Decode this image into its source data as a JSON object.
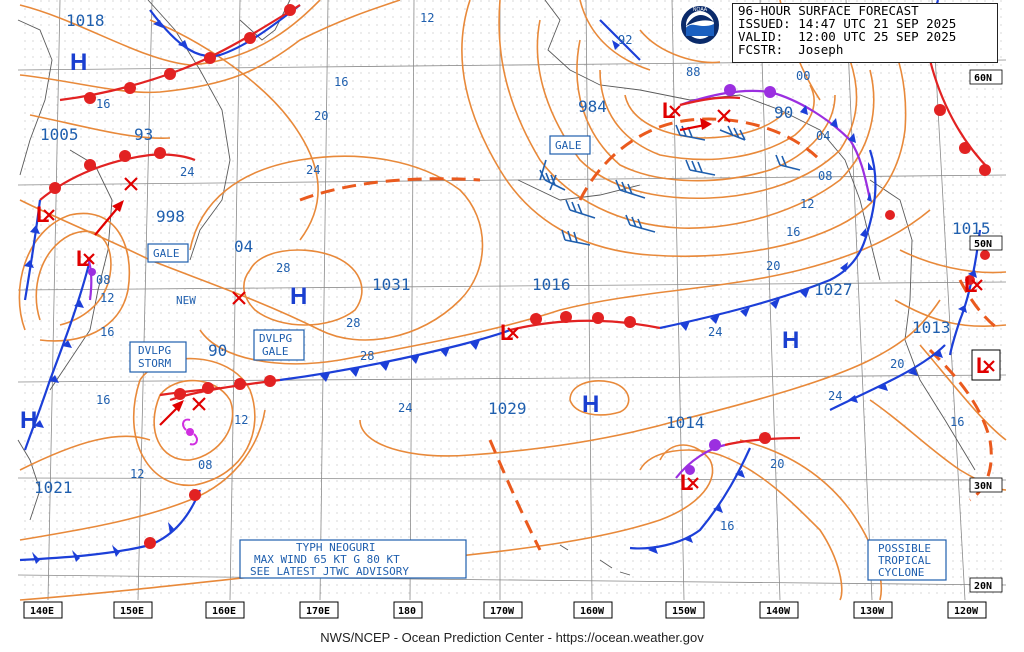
{
  "header": {
    "product": "96-HOUR SURFACE FORECAST",
    "issued": "ISSUED: 14:47 UTC 21 SEP 2025",
    "valid": "VALID:  12:00 UTC 25 SEP 2025",
    "forecaster": "FCSTR:  Joseph",
    "logo_text": "NOAA"
  },
  "footer": "NWS/NCEP - Ocean Prediction Center - https://ocean.weather.gov",
  "colors": {
    "isobar": "#e8893a",
    "high": "#1a3fd0",
    "low": "#e00000",
    "cold_front": "#1c3fd8",
    "warm_front": "#e22222",
    "occluded_front": "#9b2fe0",
    "text_blue": "#1f5fae"
  },
  "longitude_labels": [
    "140E",
    "150E",
    "160E",
    "170E",
    "180",
    "170W",
    "160W",
    "150W",
    "140W",
    "130W",
    "120W"
  ],
  "latitude_labels": [
    "60N",
    "50N",
    "30N",
    "20N"
  ],
  "highs": [
    {
      "label": "H",
      "name": "high-west-top"
    },
    {
      "label": "H",
      "name": "high-central-1031"
    },
    {
      "label": "H",
      "name": "high-east-pacific-1027"
    },
    {
      "label": "H",
      "name": "high-central-1029"
    },
    {
      "label": "H",
      "name": "high-west-coast"
    }
  ],
  "lows": [
    {
      "label": "L",
      "name": "low-kamchatka-998"
    },
    {
      "label": "L",
      "name": "low-japan-1005"
    },
    {
      "label": "L",
      "name": "low-alaska-984"
    },
    {
      "label": "L",
      "name": "low-dateline-1016"
    },
    {
      "label": "L",
      "name": "low-hawaii-1014"
    },
    {
      "label": "L",
      "name": "low-bc-1015"
    },
    {
      "label": "L",
      "name": "low-baja"
    }
  ],
  "center_pressures": [
    "1018",
    "1005",
    "93",
    "998",
    "04",
    "1031",
    "984",
    "1016",
    "90",
    "1015",
    "1027",
    "1013",
    "90",
    "1029",
    "1014",
    "1021"
  ],
  "isobar_labels": [
    "12",
    "16",
    "20",
    "24",
    "28",
    "92",
    "88",
    "00",
    "04",
    "08",
    "12",
    "16",
    "20",
    "24",
    "20",
    "16",
    "12",
    "08",
    "24",
    "28",
    "16",
    "12",
    "08",
    "16",
    "24",
    "20",
    "16",
    "12"
  ],
  "boxes": {
    "gale_kamchatka": "GALE",
    "gale_alaska": "GALE",
    "dvlpg_storm": [
      "DVLPG",
      "STORM"
    ],
    "dvlpg_gale": [
      "DVLPG",
      "GALE"
    ],
    "new_label": "NEW",
    "typhoon": [
      "TYPH NEOGURI",
      "MAX WIND 65 KT G 80 KT",
      "SEE LATEST JTWC ADVISORY"
    ],
    "tropical": [
      "POSSIBLE",
      "TROPICAL",
      "CYCLONE"
    ]
  }
}
